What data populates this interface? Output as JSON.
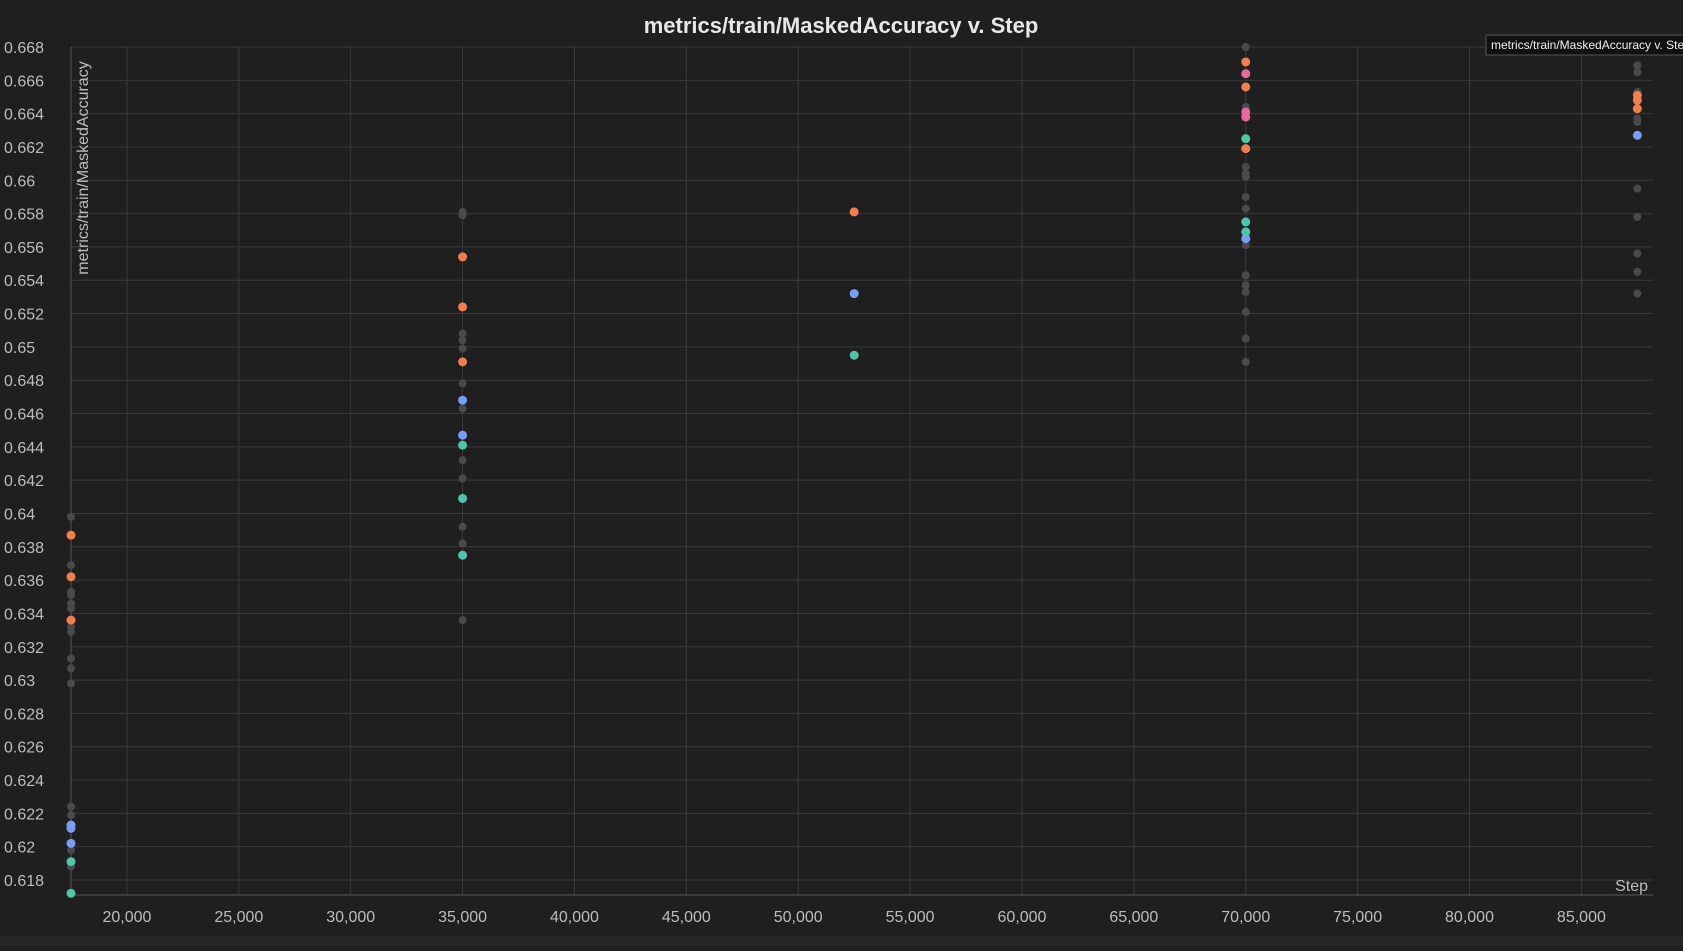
{
  "chart_data": {
    "type": "scatter",
    "title": "metrics/train/MaskedAccuracy v. Step",
    "xlabel": "Step",
    "ylabel": "metrics/train/MaskedAccuracy",
    "xlim": [
      17500,
      88200
    ],
    "ylim": [
      0.6171,
      0.668
    ],
    "x_ticks": [
      20000,
      25000,
      30000,
      35000,
      40000,
      45000,
      50000,
      55000,
      60000,
      65000,
      70000,
      75000,
      80000,
      85000
    ],
    "x_tick_labels": [
      "20,000",
      "25,000",
      "30,000",
      "35,000",
      "40,000",
      "45,000",
      "50,000",
      "55,000",
      "60,000",
      "65,000",
      "70,000",
      "75,000",
      "80,000",
      "85,000"
    ],
    "y_ticks": [
      0.618,
      0.62,
      0.622,
      0.624,
      0.626,
      0.628,
      0.63,
      0.632,
      0.634,
      0.636,
      0.638,
      0.64,
      0.642,
      0.644,
      0.646,
      0.648,
      0.65,
      0.652,
      0.654,
      0.656,
      0.658,
      0.66,
      0.662,
      0.664,
      0.666,
      0.668
    ],
    "y_tick_labels": [
      "0.618",
      "0.62",
      "0.622",
      "0.624",
      "0.626",
      "0.628",
      "0.63",
      "0.632",
      "0.634",
      "0.636",
      "0.638",
      "0.64",
      "0.642",
      "0.644",
      "0.646",
      "0.648",
      "0.65",
      "0.652",
      "0.654",
      "0.656",
      "0.658",
      "0.66",
      "0.662",
      "0.664",
      "0.666",
      "0.668"
    ],
    "grid": true,
    "tooltip": "metrics/train/MaskedAccuracy v. Step",
    "colors": {
      "background": "#1f1f1f",
      "grid": "#3a3a3a",
      "gray": "#4a4a4a",
      "orange": "#f07f50",
      "blue": "#7b9cf5",
      "teal": "#4fc4a6",
      "pink": "#e86a9a"
    },
    "series": [
      {
        "color": "gray",
        "points": [
          {
            "x": 17500,
            "y": 0.6398
          },
          {
            "x": 17500,
            "y": 0.6369
          },
          {
            "x": 17500,
            "y": 0.6353
          },
          {
            "x": 17500,
            "y": 0.6351
          },
          {
            "x": 17500,
            "y": 0.6346
          },
          {
            "x": 17500,
            "y": 0.6343
          },
          {
            "x": 17500,
            "y": 0.6332
          },
          {
            "x": 17500,
            "y": 0.6329
          },
          {
            "x": 17500,
            "y": 0.6313
          },
          {
            "x": 17500,
            "y": 0.6307
          },
          {
            "x": 17500,
            "y": 0.6298
          },
          {
            "x": 17500,
            "y": 0.6224
          },
          {
            "x": 17500,
            "y": 0.6219
          },
          {
            "x": 17500,
            "y": 0.6198
          },
          {
            "x": 17500,
            "y": 0.6188
          },
          {
            "x": 35000,
            "y": 0.6581
          },
          {
            "x": 35000,
            "y": 0.6579
          },
          {
            "x": 35000,
            "y": 0.6508
          },
          {
            "x": 35000,
            "y": 0.6504
          },
          {
            "x": 35000,
            "y": 0.6499
          },
          {
            "x": 35000,
            "y": 0.6478
          },
          {
            "x": 35000,
            "y": 0.6463
          },
          {
            "x": 35000,
            "y": 0.6432
          },
          {
            "x": 35000,
            "y": 0.6421
          },
          {
            "x": 35000,
            "y": 0.6392
          },
          {
            "x": 35000,
            "y": 0.6382
          },
          {
            "x": 35000,
            "y": 0.6336
          },
          {
            "x": 70000,
            "y": 0.668
          },
          {
            "x": 70000,
            "y": 0.6644
          },
          {
            "x": 70000,
            "y": 0.6608
          },
          {
            "x": 70000,
            "y": 0.6604
          },
          {
            "x": 70000,
            "y": 0.6602
          },
          {
            "x": 70000,
            "y": 0.659
          },
          {
            "x": 70000,
            "y": 0.6583
          },
          {
            "x": 70000,
            "y": 0.6561
          },
          {
            "x": 70000,
            "y": 0.6543
          },
          {
            "x": 70000,
            "y": 0.6537
          },
          {
            "x": 70000,
            "y": 0.6533
          },
          {
            "x": 70000,
            "y": 0.6521
          },
          {
            "x": 70000,
            "y": 0.6505
          },
          {
            "x": 70000,
            "y": 0.6491
          },
          {
            "x": 87500,
            "y": 0.6669
          },
          {
            "x": 87500,
            "y": 0.6665
          },
          {
            "x": 87500,
            "y": 0.6653
          },
          {
            "x": 87500,
            "y": 0.6637
          },
          {
            "x": 87500,
            "y": 0.6635
          },
          {
            "x": 87500,
            "y": 0.6595
          },
          {
            "x": 87500,
            "y": 0.6578
          },
          {
            "x": 87500,
            "y": 0.6556
          },
          {
            "x": 87500,
            "y": 0.6545
          },
          {
            "x": 87500,
            "y": 0.6532
          }
        ]
      },
      {
        "color": "orange",
        "points": [
          {
            "x": 17500,
            "y": 0.6387
          },
          {
            "x": 17500,
            "y": 0.6362
          },
          {
            "x": 17500,
            "y": 0.6336
          },
          {
            "x": 35000,
            "y": 0.6554
          },
          {
            "x": 35000,
            "y": 0.6524
          },
          {
            "x": 35000,
            "y": 0.6491
          },
          {
            "x": 52500,
            "y": 0.6581
          },
          {
            "x": 70000,
            "y": 0.6671
          },
          {
            "x": 70000,
            "y": 0.6656
          },
          {
            "x": 70000,
            "y": 0.6619
          },
          {
            "x": 87500,
            "y": 0.6651
          },
          {
            "x": 87500,
            "y": 0.6648
          },
          {
            "x": 87500,
            "y": 0.6643
          }
        ]
      },
      {
        "color": "pink",
        "points": [
          {
            "x": 70000,
            "y": 0.6664
          },
          {
            "x": 70000,
            "y": 0.6641
          },
          {
            "x": 70000,
            "y": 0.6638
          }
        ]
      },
      {
        "color": "blue",
        "points": [
          {
            "x": 17500,
            "y": 0.6213
          },
          {
            "x": 17500,
            "y": 0.6211
          },
          {
            "x": 17500,
            "y": 0.6202
          },
          {
            "x": 35000,
            "y": 0.6468
          },
          {
            "x": 35000,
            "y": 0.6447
          },
          {
            "x": 52500,
            "y": 0.6532
          },
          {
            "x": 70000,
            "y": 0.6565
          },
          {
            "x": 87500,
            "y": 0.6627
          }
        ]
      },
      {
        "color": "teal",
        "points": [
          {
            "x": 17500,
            "y": 0.6191
          },
          {
            "x": 17500,
            "y": 0.6172
          },
          {
            "x": 35000,
            "y": 0.6441
          },
          {
            "x": 35000,
            "y": 0.6409
          },
          {
            "x": 35000,
            "y": 0.6375
          },
          {
            "x": 52500,
            "y": 0.6495
          },
          {
            "x": 70000,
            "y": 0.6625
          },
          {
            "x": 70000,
            "y": 0.6575
          },
          {
            "x": 70000,
            "y": 0.6569
          }
        ]
      }
    ]
  }
}
